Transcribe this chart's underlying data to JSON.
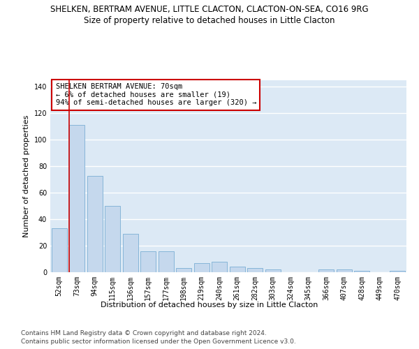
{
  "title1": "SHELKEN, BERTRAM AVENUE, LITTLE CLACTON, CLACTON-ON-SEA, CO16 9RG",
  "title2": "Size of property relative to detached houses in Little Clacton",
  "xlabel": "Distribution of detached houses by size in Little Clacton",
  "ylabel": "Number of detached properties",
  "categories": [
    "52sqm",
    "73sqm",
    "94sqm",
    "115sqm",
    "136sqm",
    "157sqm",
    "177sqm",
    "198sqm",
    "219sqm",
    "240sqm",
    "261sqm",
    "282sqm",
    "303sqm",
    "324sqm",
    "345sqm",
    "366sqm",
    "407sqm",
    "428sqm",
    "449sqm",
    "470sqm"
  ],
  "values": [
    33,
    111,
    73,
    50,
    29,
    16,
    16,
    3,
    7,
    8,
    4,
    3,
    2,
    0,
    0,
    2,
    2,
    1,
    0,
    1
  ],
  "bar_color": "#c5d8ed",
  "bar_edge_color": "#7aaed4",
  "vline_color": "#cc0000",
  "vline_x": 0.575,
  "annotation_text": "SHELKEN BERTRAM AVENUE: 70sqm\n← 6% of detached houses are smaller (19)\n94% of semi-detached houses are larger (320) →",
  "annotation_box_color": "#ffffff",
  "annotation_box_edge": "#cc0000",
  "ylim": [
    0,
    145
  ],
  "yticks": [
    0,
    20,
    40,
    60,
    80,
    100,
    120,
    140
  ],
  "fig_bg_color": "#ffffff",
  "plot_bg_color": "#dce9f5",
  "grid_color": "#ffffff",
  "title1_fontsize": 8.5,
  "title2_fontsize": 8.5,
  "axis_label_fontsize": 8,
  "tick_fontsize": 7,
  "annot_fontsize": 7.5,
  "footer_fontsize": 6.5,
  "footer1": "Contains HM Land Registry data © Crown copyright and database right 2024.",
  "footer2": "Contains public sector information licensed under the Open Government Licence v3.0."
}
